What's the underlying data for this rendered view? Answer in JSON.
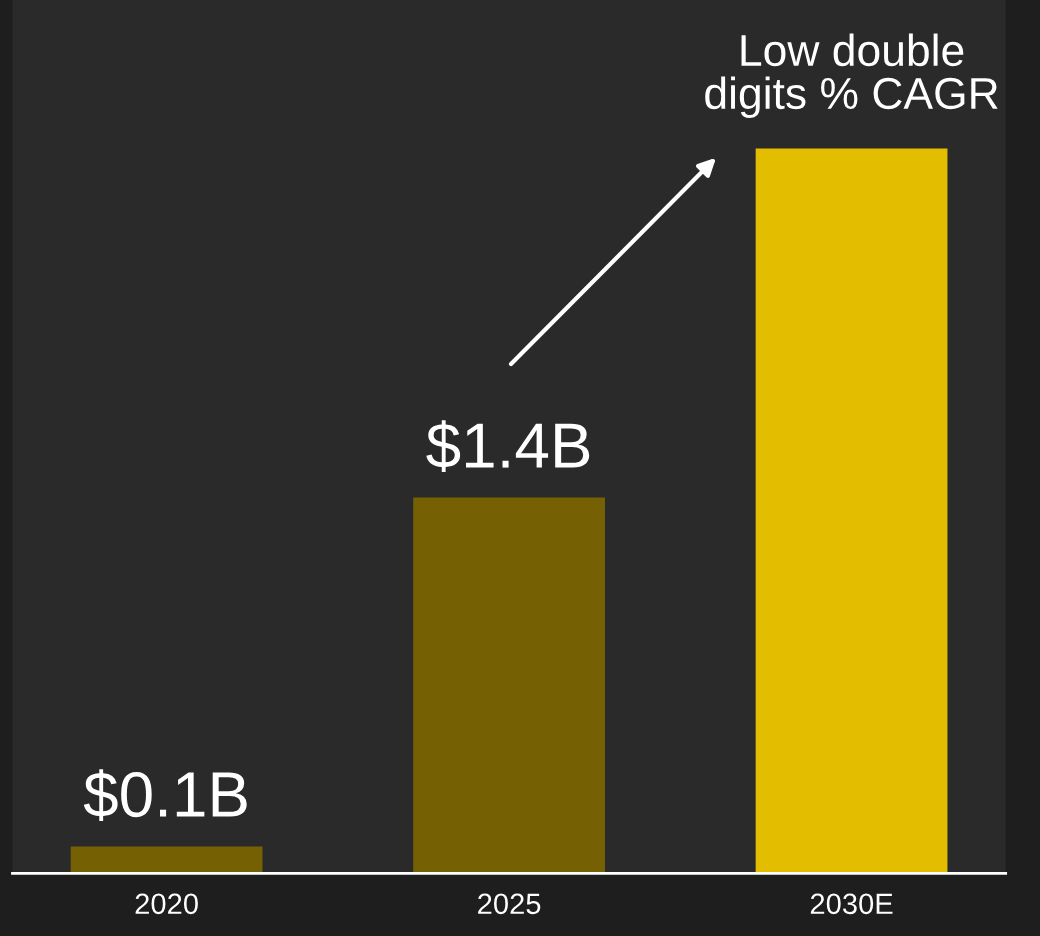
{
  "chart_data": {
    "type": "bar",
    "categories": [
      "2020",
      "2025",
      "2030E"
    ],
    "values": [
      0.1,
      1.4,
      2.7
    ],
    "colors": [
      "#756003",
      "#756003",
      "#e3bd00"
    ],
    "value_labels": [
      "$0.1B",
      "$1.4B",
      null
    ],
    "annotations": [
      {
        "text": "Low double\ndigits % CAGR",
        "x": "2030E",
        "y": 2.7
      }
    ],
    "grid": false,
    "legend": false
  }
}
